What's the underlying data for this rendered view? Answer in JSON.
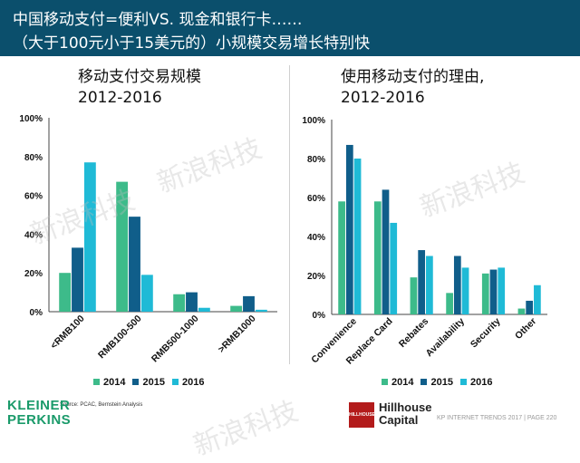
{
  "header": {
    "line1": "中国移动支付=便利VS. 现金和银行卡……",
    "line2": "（大于100元小于15美元的）小规模交易增长特别快"
  },
  "colors": {
    "header_bg": "#0b4f6c",
    "s2014": "#3dbb8a",
    "s2015": "#105e8a",
    "s2016": "#1fbad6"
  },
  "chart_data": [
    {
      "type": "bar",
      "title_line1": "移动支付交易规模",
      "title_line2": "2012-2016",
      "categories": [
        "<RMB100",
        "RMB100-500",
        "RMB500-1000",
        ">RMB1000"
      ],
      "series": [
        {
          "name": "2014",
          "values": [
            20,
            67,
            9,
            3
          ]
        },
        {
          "name": "2015",
          "values": [
            33,
            49,
            10,
            8
          ]
        },
        {
          "name": "2016",
          "values": [
            77,
            19,
            2,
            1
          ]
        }
      ],
      "ylim": [
        0,
        100
      ],
      "yticks": [
        "0%",
        "20%",
        "40%",
        "60%",
        "80%",
        "100%"
      ],
      "grid": false,
      "legend": "bottom"
    },
    {
      "type": "bar",
      "title_line1": "使用移动支付的理由,",
      "title_line2": "2012-2016",
      "categories": [
        "Convenience",
        "Replace Card",
        "Rebates",
        "Availability",
        "Security",
        "Other"
      ],
      "series": [
        {
          "name": "2014",
          "values": [
            58,
            58,
            19,
            11,
            21,
            3
          ]
        },
        {
          "name": "2015",
          "values": [
            87,
            64,
            33,
            30,
            23,
            7
          ]
        },
        {
          "name": "2016",
          "values": [
            80,
            47,
            30,
            24,
            24,
            15
          ]
        }
      ],
      "ylim": [
        0,
        100
      ],
      "yticks": [
        "0%",
        "20%",
        "40%",
        "60%",
        "80%",
        "100%"
      ],
      "grid": false,
      "legend": "bottom"
    }
  ],
  "source": "Source: PCAC, Bernstein Analysis",
  "logos": {
    "kp_line1": "KLEINER",
    "kp_line2": "PERKINS",
    "hh_mark": "HILLHOUSE",
    "hh_line1": "Hillhouse",
    "hh_line2": "Capital"
  },
  "footer": "KP INTERNET TRENDS 2017 | PAGE 220",
  "watermark": "新浪科技"
}
